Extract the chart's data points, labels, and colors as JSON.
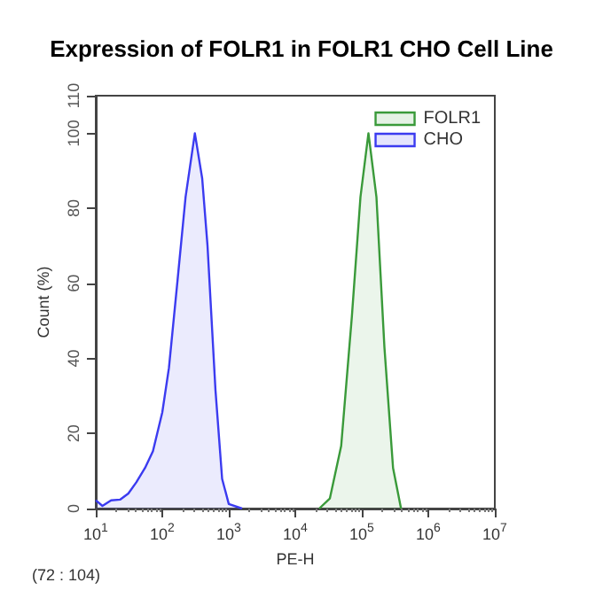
{
  "chart_data": {
    "type": "area",
    "title": "Expression of FOLR1 in FOLR1 CHO Cell Line",
    "xlabel": "PE-H",
    "ylabel": "Count (%)",
    "log": "x",
    "grid": false,
    "legend": "top right",
    "marker": "none",
    "line_style": "solid",
    "xlim": [
      10,
      10000000
    ],
    "xticks": [
      {
        "value": 10,
        "label": "10$^{1}$"
      },
      {
        "value": 100,
        "label": "10$^{2}$"
      },
      {
        "value": 1000,
        "label": "10$^{3}$"
      },
      {
        "value": 10000,
        "label": "10$^{4}$"
      },
      {
        "value": 100000,
        "label": "10$^{5}$"
      },
      {
        "value": 1000000,
        "label": "10$^{6}$"
      },
      {
        "value": 10000000,
        "label": "10$^{7}$"
      }
    ],
    "ylim": [
      0,
      110
    ],
    "yticks": [
      0,
      20,
      40,
      60,
      80,
      100,
      110
    ],
    "annotations": [
      "(72 : 104)"
    ],
    "series": [
      {
        "name": "FOLR1",
        "color": "#3a9a3a",
        "x": [
          22900,
          33100,
          49000,
          70800,
          95500,
          125900,
          166000,
          218800,
          295100,
          389000
        ],
        "values": [
          0,
          2.7,
          16.7,
          51,
          83,
          100,
          83,
          43,
          10.8,
          0
        ]
      },
      {
        "name": "CHO",
        "color": "#3b3bf0",
        "x": [
          10,
          12.6,
          17,
          23.4,
          30.9,
          40.7,
          55,
          72.4,
          100,
          126,
          170,
          224,
          309,
          398,
          479,
          631,
          794,
          1000,
          1585
        ],
        "values": [
          2.2,
          0.7,
          2.2,
          2.4,
          4,
          7,
          10.8,
          15.3,
          25.6,
          37.5,
          61,
          83,
          100,
          88,
          70,
          31.5,
          7.9,
          1.2,
          0
        ]
      }
    ]
  }
}
